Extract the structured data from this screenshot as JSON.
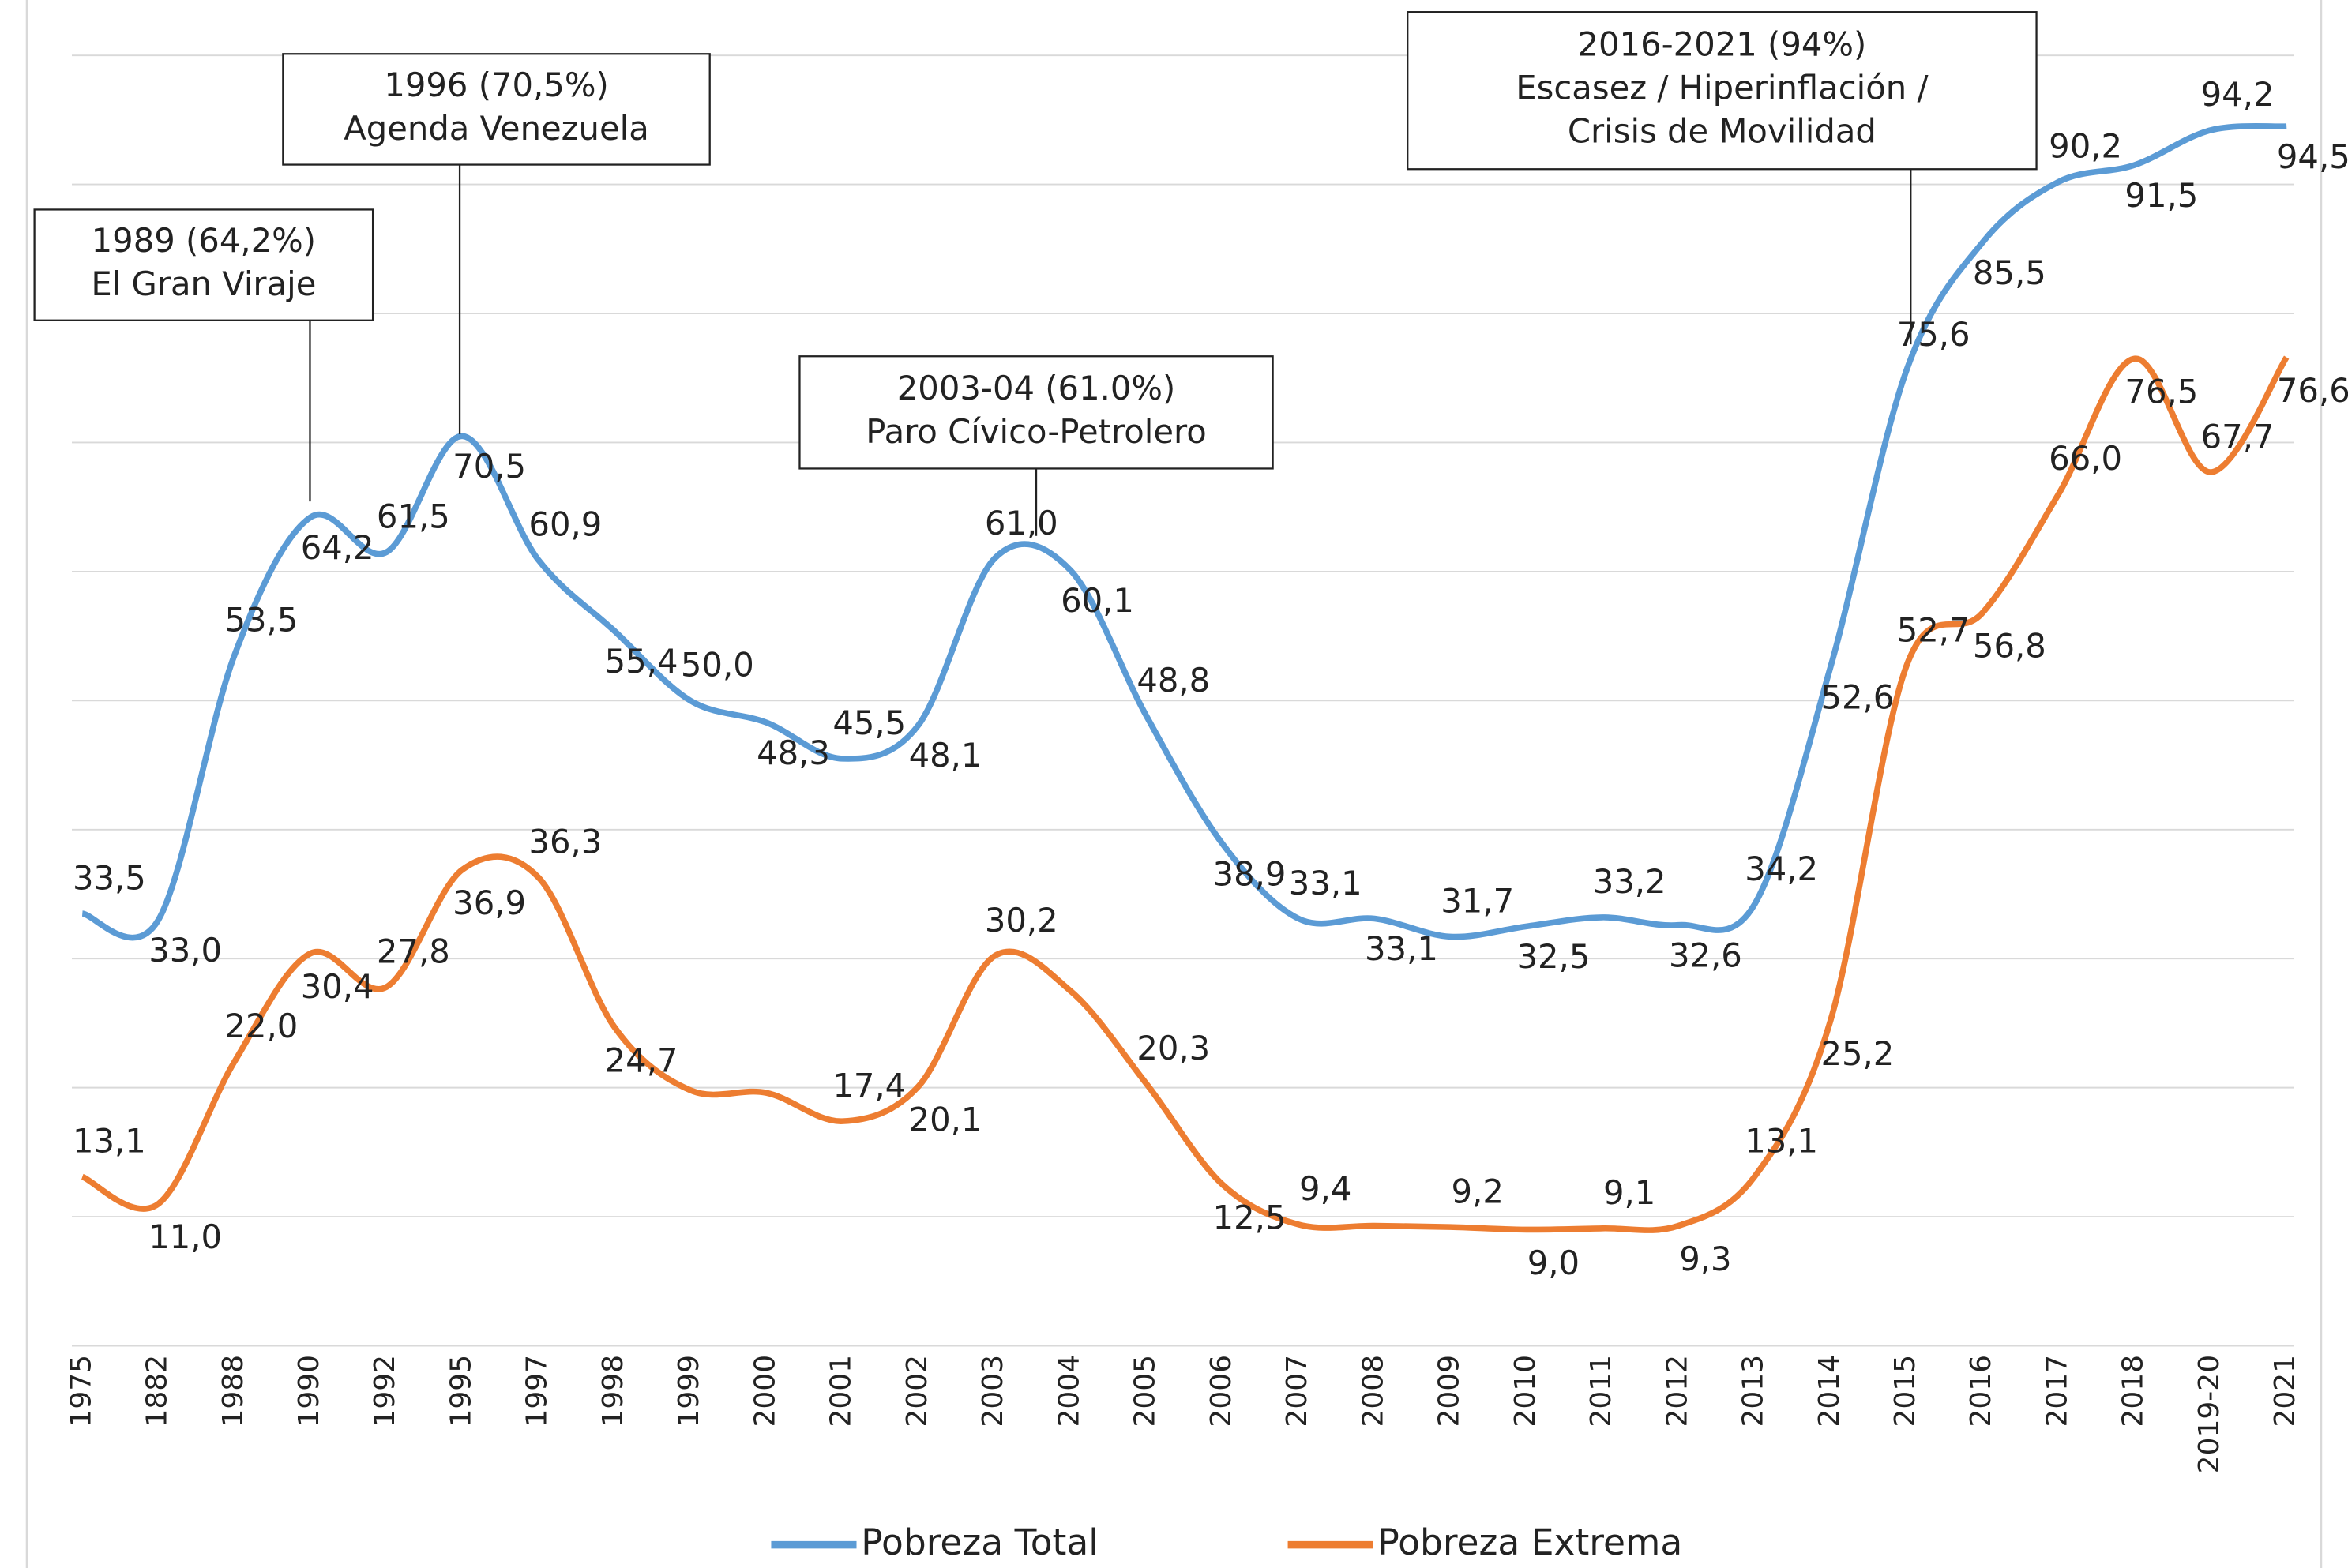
{
  "chart_data": {
    "type": "line",
    "categories": [
      "1975",
      "1882",
      "1988",
      "1990",
      "1992",
      "1995",
      "1997",
      "1998",
      "1999",
      "2000",
      "2001",
      "2002",
      "2003",
      "2004",
      "2005",
      "2006",
      "2007",
      "2008",
      "2009",
      "2010",
      "2011",
      "2012",
      "2013",
      "2014",
      "2015",
      "2016",
      "2017",
      "2018",
      "2019-20",
      "2021"
    ],
    "series": [
      {
        "name": "Pobreza Total",
        "color": "#5b9bd5",
        "values": [
          33.5,
          33.0,
          53.5,
          64.2,
          61.5,
          70.5,
          60.9,
          55.4,
          50.0,
          48.3,
          45.5,
          48.1,
          61.0,
          60.1,
          48.8,
          38.9,
          33.1,
          33.1,
          31.7,
          32.5,
          33.2,
          32.6,
          34.2,
          52.6,
          75.6,
          85.5,
          90.2,
          91.5,
          94.2,
          94.5
        ],
        "value_labels": [
          "33,5",
          "33,0",
          "53,5",
          "64,2",
          "61,5",
          "70,5",
          "60,9",
          "55,4",
          "50,0",
          "48,3",
          "45,5",
          "48,1",
          "61,0",
          "60,1",
          "48,8",
          "38,9",
          "33,1",
          "33,1",
          "31,7",
          "32,5",
          "33,2",
          "32,6",
          "34,2",
          "52,6",
          "75,6",
          "85,5",
          "90,2",
          "91,5",
          "94,2",
          "94,5"
        ]
      },
      {
        "name": "Pobreza Extrema",
        "color": "#ed7d31",
        "values": [
          13.1,
          11.0,
          22.0,
          30.4,
          27.8,
          36.9,
          36.3,
          24.7,
          19.8,
          19.6,
          17.4,
          20.1,
          30.2,
          27.5,
          20.3,
          12.5,
          9.4,
          9.3,
          9.2,
          9.0,
          9.1,
          9.3,
          13.1,
          25.2,
          52.7,
          56.8,
          66.0,
          76.5,
          67.7,
          76.6
        ],
        "value_labels": [
          "13,1",
          "11,0",
          "22,0",
          "30,4",
          "27,8",
          "36,9",
          "36,3",
          "24,7",
          null,
          null,
          "17,4",
          "20,1",
          "30,2",
          null,
          "20,3",
          "12,5",
          "9,4",
          null,
          "9,2",
          "9,0",
          "9,1",
          "9,3",
          "13,1",
          "25,2",
          "52,7",
          "56,8",
          "66,0",
          "76,5",
          "67,7",
          "76,6"
        ]
      }
    ],
    "ylim": [
      0,
      100
    ],
    "yticks": [
      0,
      10,
      20,
      30,
      40,
      50,
      60,
      70,
      80,
      90,
      100
    ],
    "grid": true,
    "legend": "bottom",
    "annotations": [
      {
        "lines": [
          "1989 (64,2%)",
          "El Gran Viraje"
        ]
      },
      {
        "lines": [
          "1996 (70,5%)",
          "Agenda Venezuela"
        ]
      },
      {
        "lines": [
          "2003-04 (61.0%)",
          "Paro Cívico-Petrolero"
        ]
      },
      {
        "lines": [
          "2016-2021 (94%)",
          "Escasez / Hiperinflación /",
          "Crisis de Movilidad"
        ]
      }
    ]
  }
}
